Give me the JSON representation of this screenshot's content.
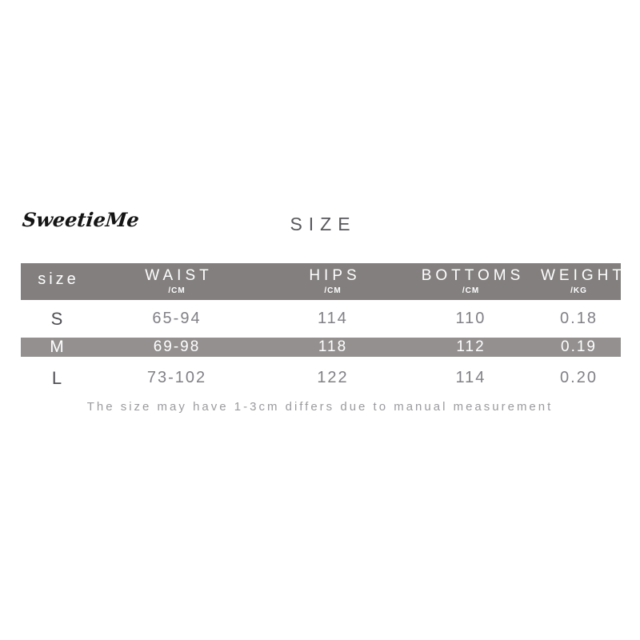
{
  "brand": {
    "name": "SweetieMe"
  },
  "title": "SIZE",
  "note": "The size may have 1-3cm differs due to manual measurement",
  "colors": {
    "header_bg": "#837f7f",
    "highlight_bg": "#949090",
    "title_text": "#58585c",
    "size_text": "#4f4f54",
    "number_text": "#808086",
    "note_text": "#9b9b9f",
    "logo_text": "#141414",
    "page_bg": "#ffffff"
  },
  "table": {
    "columns": [
      {
        "label": "size",
        "unit": ""
      },
      {
        "label": "WAIST",
        "unit": "/CM"
      },
      {
        "label": "HIPS",
        "unit": "/CM"
      },
      {
        "label": "BOTTOMS",
        "unit": "/CM"
      },
      {
        "label": "WEIGHT",
        "unit": "/KG"
      }
    ],
    "rows": [
      {
        "size": "S",
        "waist": "65-94",
        "hips": "114",
        "bottoms": "110",
        "weight": "0.18",
        "highlighted": false
      },
      {
        "size": "M",
        "waist": "69-98",
        "hips": "118",
        "bottoms": "112",
        "weight": "0.19",
        "highlighted": true
      },
      {
        "size": "L",
        "waist": "73-102",
        "hips": "122",
        "bottoms": "114",
        "weight": "0.20",
        "highlighted": false
      }
    ]
  },
  "chart_data": {
    "type": "table",
    "title": "SIZE",
    "columns": [
      "size",
      "WAIST /CM",
      "HIPS /CM",
      "BOTTOMS /CM",
      "WEIGHT /KG"
    ],
    "rows": [
      [
        "S",
        "65-94",
        "114",
        "110",
        "0.18"
      ],
      [
        "M",
        "69-98",
        "118",
        "112",
        "0.19"
      ],
      [
        "L",
        "73-102",
        "122",
        "114",
        "0.20"
      ]
    ],
    "highlighted_row": "M",
    "footnote": "The size may have 1-3cm differs due to manual measurement"
  }
}
